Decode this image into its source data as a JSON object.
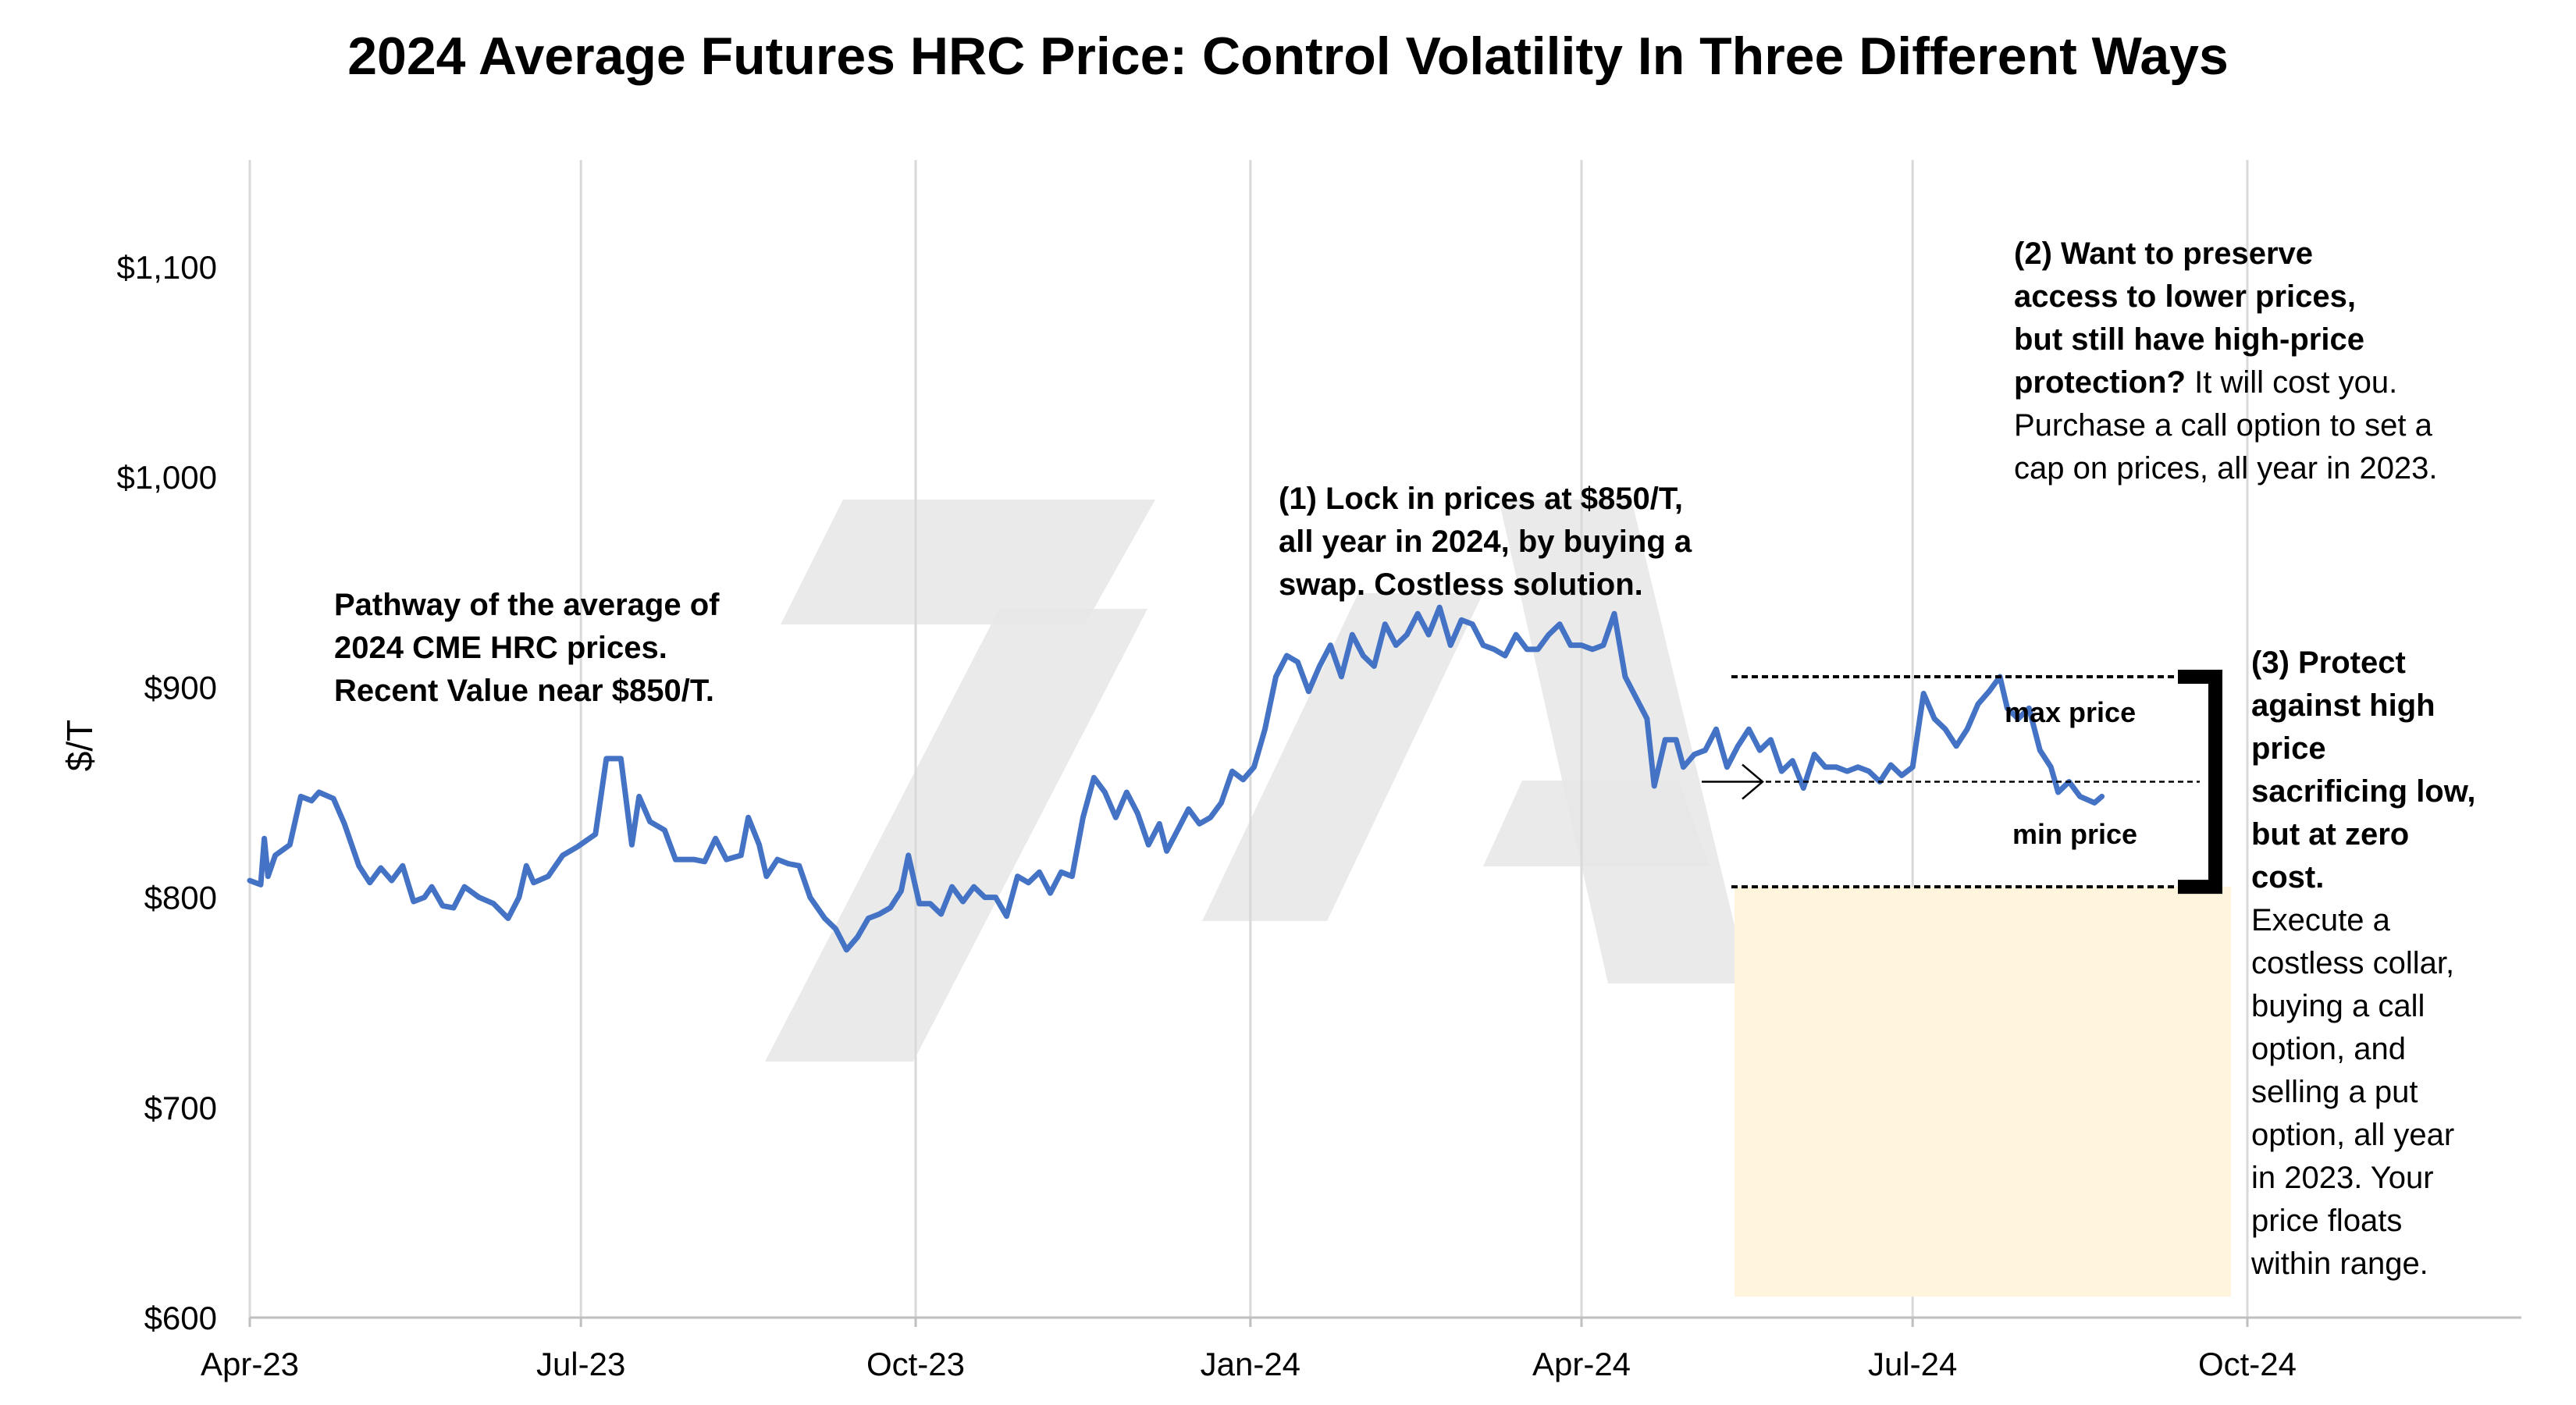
{
  "chart_data": {
    "type": "line",
    "title": "2024 Average Futures HRC Price: Control Volatility In Three Different Ways",
    "ylabel": "$/T",
    "xlabel": "",
    "ylim": [
      600,
      1150
    ],
    "xlim": [
      "2023-04-01",
      "2024-11-30"
    ],
    "y_ticks": [
      {
        "value": 600,
        "label": "$600"
      },
      {
        "value": 700,
        "label": "$700"
      },
      {
        "value": 800,
        "label": "$800"
      },
      {
        "value": 900,
        "label": "$900"
      },
      {
        "value": 1000,
        "label": "$1,000"
      },
      {
        "value": 1100,
        "label": "$1,100"
      }
    ],
    "x_ticks": [
      {
        "date": "2023-04-01",
        "label": "Apr-23"
      },
      {
        "date": "2023-07-01",
        "label": "Jul-23"
      },
      {
        "date": "2023-10-01",
        "label": "Oct-23"
      },
      {
        "date": "2024-01-01",
        "label": "Jan-24"
      },
      {
        "date": "2024-04-01",
        "label": "Apr-24"
      },
      {
        "date": "2024-07-01",
        "label": "Jul-24"
      },
      {
        "date": "2024-10-01",
        "label": "Oct-24"
      }
    ],
    "grid": "vertical",
    "legend": "none",
    "series": [
      {
        "color": "#4472c4",
        "points": [
          [
            "2023-04-01",
            808
          ],
          [
            "2023-04-04",
            806
          ],
          [
            "2023-04-05",
            828
          ],
          [
            "2023-04-06",
            810
          ],
          [
            "2023-04-08",
            820
          ],
          [
            "2023-04-12",
            825
          ],
          [
            "2023-04-15",
            848
          ],
          [
            "2023-04-18",
            846
          ],
          [
            "2023-04-20",
            850
          ],
          [
            "2023-04-24",
            847
          ],
          [
            "2023-04-27",
            835
          ],
          [
            "2023-05-01",
            815
          ],
          [
            "2023-05-04",
            807
          ],
          [
            "2023-05-07",
            814
          ],
          [
            "2023-05-10",
            808
          ],
          [
            "2023-05-13",
            815
          ],
          [
            "2023-05-16",
            798
          ],
          [
            "2023-05-19",
            800
          ],
          [
            "2023-05-21",
            805
          ],
          [
            "2023-05-24",
            796
          ],
          [
            "2023-05-27",
            795
          ],
          [
            "2023-05-30",
            805
          ],
          [
            "2023-06-03",
            800
          ],
          [
            "2023-06-07",
            797
          ],
          [
            "2023-06-11",
            790
          ],
          [
            "2023-06-14",
            800
          ],
          [
            "2023-06-16",
            815
          ],
          [
            "2023-06-18",
            807
          ],
          [
            "2023-06-22",
            810
          ],
          [
            "2023-06-26",
            820
          ],
          [
            "2023-06-30",
            824
          ],
          [
            "2023-07-05",
            830
          ],
          [
            "2023-07-08",
            866
          ],
          [
            "2023-07-12",
            866
          ],
          [
            "2023-07-15",
            825
          ],
          [
            "2023-07-17",
            848
          ],
          [
            "2023-07-20",
            836
          ],
          [
            "2023-07-24",
            832
          ],
          [
            "2023-07-27",
            818
          ],
          [
            "2023-08-01",
            818
          ],
          [
            "2023-08-04",
            817
          ],
          [
            "2023-08-07",
            828
          ],
          [
            "2023-08-10",
            818
          ],
          [
            "2023-08-14",
            820
          ],
          [
            "2023-08-16",
            838
          ],
          [
            "2023-08-19",
            825
          ],
          [
            "2023-08-21",
            810
          ],
          [
            "2023-08-24",
            818
          ],
          [
            "2023-08-27",
            816
          ],
          [
            "2023-08-30",
            815
          ],
          [
            "2023-09-02",
            800
          ],
          [
            "2023-09-06",
            790
          ],
          [
            "2023-09-09",
            785
          ],
          [
            "2023-09-12",
            775
          ],
          [
            "2023-09-15",
            781
          ],
          [
            "2023-09-18",
            790
          ],
          [
            "2023-09-21",
            792
          ],
          [
            "2023-09-24",
            795
          ],
          [
            "2023-09-27",
            803
          ],
          [
            "2023-09-29",
            820
          ],
          [
            "2023-10-02",
            797
          ],
          [
            "2023-10-05",
            797
          ],
          [
            "2023-10-08",
            792
          ],
          [
            "2023-10-11",
            805
          ],
          [
            "2023-10-14",
            798
          ],
          [
            "2023-10-17",
            805
          ],
          [
            "2023-10-20",
            800
          ],
          [
            "2023-10-23",
            800
          ],
          [
            "2023-10-26",
            791
          ],
          [
            "2023-10-29",
            810
          ],
          [
            "2023-11-01",
            807
          ],
          [
            "2023-11-04",
            812
          ],
          [
            "2023-11-07",
            802
          ],
          [
            "2023-11-10",
            812
          ],
          [
            "2023-11-13",
            810
          ],
          [
            "2023-11-16",
            838
          ],
          [
            "2023-11-19",
            857
          ],
          [
            "2023-11-22",
            850
          ],
          [
            "2023-11-25",
            838
          ],
          [
            "2023-11-28",
            850
          ],
          [
            "2023-12-01",
            840
          ],
          [
            "2023-12-04",
            825
          ],
          [
            "2023-12-07",
            835
          ],
          [
            "2023-12-09",
            822
          ],
          [
            "2023-12-12",
            832
          ],
          [
            "2023-12-15",
            842
          ],
          [
            "2023-12-18",
            835
          ],
          [
            "2023-12-21",
            838
          ],
          [
            "2023-12-24",
            845
          ],
          [
            "2023-12-27",
            860
          ],
          [
            "2023-12-30",
            856
          ],
          [
            "2024-01-02",
            862
          ],
          [
            "2024-01-05",
            880
          ],
          [
            "2024-01-08",
            905
          ],
          [
            "2024-01-11",
            915
          ],
          [
            "2024-01-14",
            912
          ],
          [
            "2024-01-17",
            898
          ],
          [
            "2024-01-20",
            910
          ],
          [
            "2024-01-23",
            920
          ],
          [
            "2024-01-26",
            905
          ],
          [
            "2024-01-29",
            925
          ],
          [
            "2024-02-01",
            915
          ],
          [
            "2024-02-04",
            910
          ],
          [
            "2024-02-07",
            930
          ],
          [
            "2024-02-10",
            920
          ],
          [
            "2024-02-13",
            925
          ],
          [
            "2024-02-16",
            935
          ],
          [
            "2024-02-19",
            925
          ],
          [
            "2024-02-22",
            938
          ],
          [
            "2024-02-25",
            920
          ],
          [
            "2024-02-28",
            932
          ],
          [
            "2024-03-02",
            930
          ],
          [
            "2024-03-05",
            920
          ],
          [
            "2024-03-08",
            918
          ],
          [
            "2024-03-11",
            915
          ],
          [
            "2024-03-14",
            925
          ],
          [
            "2024-03-17",
            918
          ],
          [
            "2024-03-20",
            918
          ],
          [
            "2024-03-23",
            925
          ],
          [
            "2024-03-26",
            930
          ],
          [
            "2024-03-29",
            920
          ],
          [
            "2024-04-01",
            920
          ],
          [
            "2024-04-04",
            918
          ],
          [
            "2024-04-07",
            920
          ],
          [
            "2024-04-10",
            935
          ],
          [
            "2024-04-13",
            905
          ],
          [
            "2024-04-16",
            895
          ],
          [
            "2024-04-19",
            885
          ],
          [
            "2024-04-21",
            853
          ],
          [
            "2024-04-24",
            875
          ],
          [
            "2024-04-27",
            875
          ],
          [
            "2024-04-29",
            862
          ],
          [
            "2024-05-02",
            868
          ],
          [
            "2024-05-05",
            870
          ],
          [
            "2024-05-08",
            880
          ],
          [
            "2024-05-11",
            862
          ],
          [
            "2024-05-14",
            872
          ],
          [
            "2024-05-17",
            880
          ],
          [
            "2024-05-20",
            870
          ],
          [
            "2024-05-23",
            875
          ],
          [
            "2024-05-26",
            860
          ],
          [
            "2024-05-29",
            865
          ],
          [
            "2024-06-01",
            852
          ],
          [
            "2024-06-04",
            868
          ],
          [
            "2024-06-07",
            862
          ],
          [
            "2024-06-10",
            862
          ],
          [
            "2024-06-13",
            860
          ],
          [
            "2024-06-16",
            862
          ],
          [
            "2024-06-19",
            860
          ],
          [
            "2024-06-22",
            855
          ],
          [
            "2024-06-25",
            863
          ],
          [
            "2024-06-28",
            858
          ],
          [
            "2024-07-01",
            862
          ],
          [
            "2024-07-04",
            897
          ],
          [
            "2024-07-07",
            885
          ],
          [
            "2024-07-10",
            880
          ],
          [
            "2024-07-13",
            872
          ],
          [
            "2024-07-16",
            880
          ],
          [
            "2024-07-19",
            892
          ],
          [
            "2024-07-22",
            898
          ],
          [
            "2024-07-25",
            905
          ],
          [
            "2024-07-27",
            890
          ],
          [
            "2024-07-30",
            885
          ],
          [
            "2024-08-02",
            890
          ],
          [
            "2024-08-05",
            870
          ],
          [
            "2024-08-08",
            862
          ],
          [
            "2024-08-10",
            850
          ],
          [
            "2024-08-13",
            855
          ],
          [
            "2024-08-16",
            848
          ],
          [
            "2024-08-20",
            845
          ],
          [
            "2024-08-22",
            848
          ]
        ]
      }
    ],
    "hedge_levels": {
      "max_price": 905,
      "mid_price": 855,
      "min_price": 805,
      "floor_band": [
        610,
        805
      ]
    }
  },
  "annotations": {
    "pathway_lines": [
      "Pathway of the average of",
      "2024 CME HRC prices.",
      "Recent Value near $850/T."
    ],
    "swap_lines": [
      "(1) Lock in prices at $850/T,",
      "all year in 2024, by buying a",
      "swap. Costless solution."
    ],
    "call_bold_lines": [
      "(2) Want to preserve",
      "access to lower prices,",
      "but still have high-price",
      "protection?"
    ],
    "call_rest": " It will cost you. Purchase a call option to set a cap on prices, all year in 2023.",
    "collar_bold_lines": [
      "(3) Protect",
      "against high",
      "price",
      "sacrificing low,",
      "but at zero",
      "cost."
    ],
    "collar_rest_lines": [
      "Execute a",
      "costless collar,",
      "buying a call",
      "option, and",
      "selling a put",
      "option, all year",
      "in 2023.  Your",
      "price floats",
      "within range."
    ],
    "max_label": "max price",
    "min_label": "min price"
  },
  "colors": {
    "line": "#4472c4",
    "grid": "#d9d9d9",
    "band": "#fff5dc",
    "watermark": "#e6e6e6",
    "text": "#000000"
  }
}
